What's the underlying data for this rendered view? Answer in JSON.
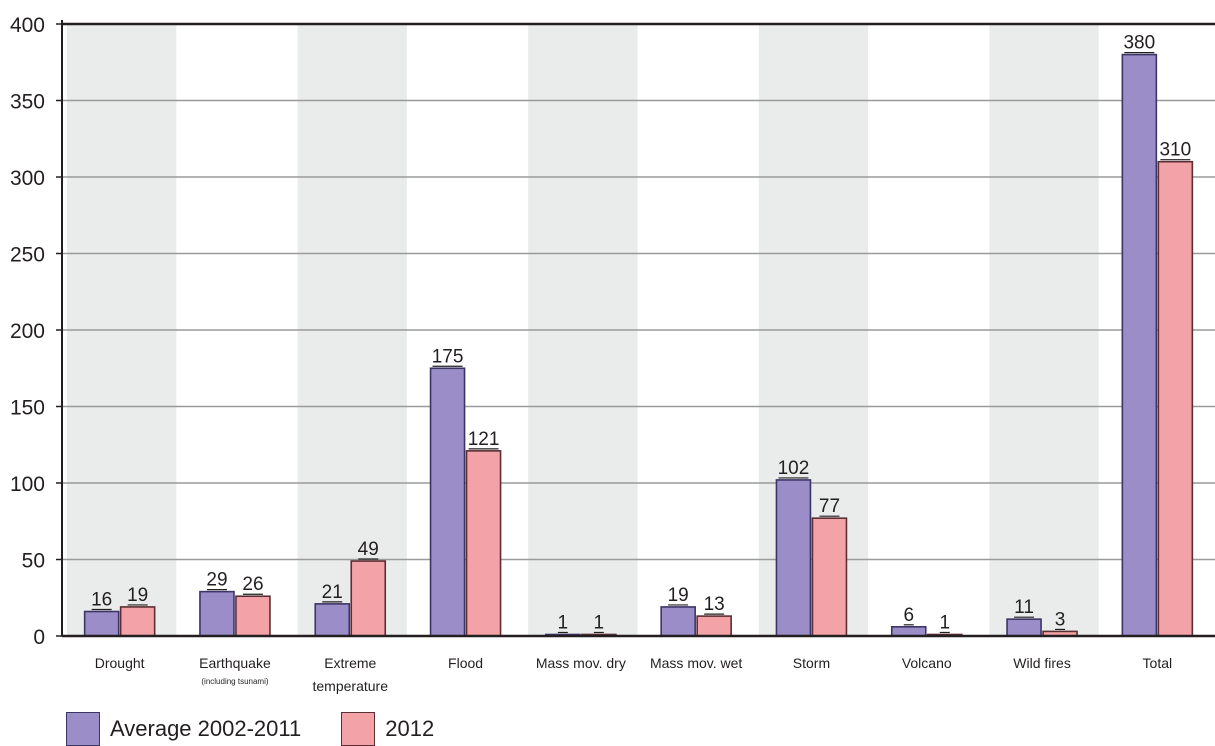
{
  "chart_data": {
    "type": "bar",
    "categories": [
      "Drought",
      "Earthquake",
      "Extreme temperature",
      "Flood",
      "Mass mov. dry",
      "Mass mov. wet",
      "Storm",
      "Volcano",
      "Wild fires",
      "Total"
    ],
    "category_labels": [
      {
        "line1": "Drought",
        "line2": "",
        "sub": ""
      },
      {
        "line1": "Earthquake",
        "line2": "",
        "sub": "(including tsunami)"
      },
      {
        "line1": "Extreme",
        "line2": "temperature",
        "sub": ""
      },
      {
        "line1": "Flood",
        "line2": "",
        "sub": ""
      },
      {
        "line1": "Mass mov. dry",
        "line2": "",
        "sub": ""
      },
      {
        "line1": "Mass mov. wet",
        "line2": "",
        "sub": ""
      },
      {
        "line1": "Storm",
        "line2": "",
        "sub": ""
      },
      {
        "line1": "Volcano",
        "line2": "",
        "sub": ""
      },
      {
        "line1": "Wild fires",
        "line2": "",
        "sub": ""
      },
      {
        "line1": "Total",
        "line2": "",
        "sub": ""
      }
    ],
    "series": [
      {
        "name": "Average 2002-2011",
        "color": "#9b8dc8",
        "edge": "#3b3565",
        "values": [
          16,
          29,
          21,
          175,
          1,
          19,
          102,
          6,
          11,
          380
        ]
      },
      {
        "name": "2012",
        "color": "#f3a3a8",
        "edge": "#5a2e34",
        "values": [
          19,
          26,
          49,
          121,
          1,
          13,
          77,
          1,
          3,
          310
        ]
      }
    ],
    "ylim": [
      0,
      400
    ],
    "yticks": [
      "0",
      "50",
      "100",
      "150",
      "200",
      "250",
      "300",
      "350",
      "400"
    ],
    "grid": true,
    "band_color": "#e9eceb",
    "legend_position": "bottom-left",
    "title": "",
    "xlabel": "",
    "ylabel": ""
  }
}
